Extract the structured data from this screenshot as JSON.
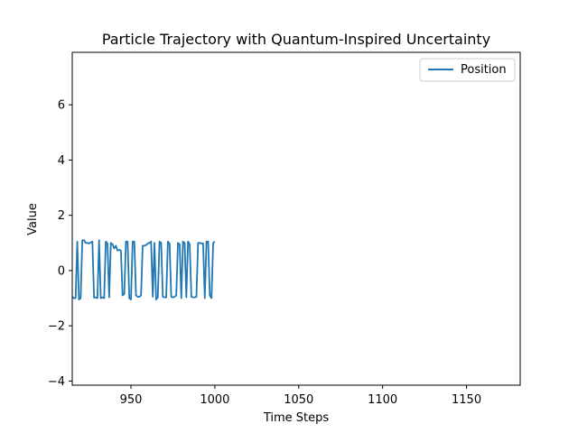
{
  "chart_data": {
    "type": "line",
    "title": "Particle Trajectory with Quantum-Inspired Uncertainty",
    "xlabel": "Time Steps",
    "ylabel": "Value",
    "xlim": [
      915,
      1182
    ],
    "ylim": [
      -4.15,
      7.9
    ],
    "xticks": [
      950,
      1000,
      1050,
      1100,
      1150
    ],
    "yticks": [
      -4,
      -2,
      0,
      2,
      4,
      6
    ],
    "grid": false,
    "legend": {
      "placement": "upper right",
      "entries": [
        "Position"
      ]
    },
    "series": [
      {
        "name": "Position",
        "color": "#1f77b4",
        "x": [
          915,
          916,
          917,
          918,
          919,
          920,
          921,
          922,
          923,
          924,
          925,
          926,
          927,
          928,
          929,
          930,
          931,
          932,
          933,
          934,
          935,
          936,
          937,
          938,
          939,
          940,
          941,
          942,
          943,
          944,
          945,
          946,
          947,
          948,
          949,
          950,
          951,
          952,
          953,
          954,
          955,
          956,
          957,
          958,
          959,
          960,
          961,
          962,
          963,
          964,
          965,
          966,
          967,
          968,
          969,
          970,
          971,
          972,
          973,
          974,
          975,
          976,
          977,
          978,
          979,
          980,
          981,
          982,
          983,
          984,
          985,
          986,
          987,
          988,
          989,
          990,
          991,
          992,
          993,
          994,
          995,
          996,
          997,
          998,
          999,
          1000
        ],
        "y": [
          -0.95,
          -1.0,
          -1.0,
          1.05,
          -1.05,
          -1.0,
          1.1,
          1.1,
          1.0,
          1.0,
          0.98,
          1.02,
          1.05,
          -0.98,
          -0.97,
          -1.0,
          1.1,
          -1.0,
          -0.97,
          -1.0,
          1.05,
          0.98,
          -0.97,
          1.0,
          0.95,
          0.8,
          0.9,
          0.72,
          0.75,
          0.72,
          -0.9,
          -0.85,
          1.05,
          1.05,
          -1.0,
          -1.05,
          1.05,
          1.05,
          -0.9,
          -0.95,
          -0.95,
          -0.9,
          0.9,
          0.9,
          0.92,
          0.98,
          1.0,
          1.05,
          -0.95,
          1.0,
          -1.05,
          -0.97,
          1.05,
          1.0,
          -0.95,
          -0.97,
          -0.97,
          1.05,
          0.98,
          -0.95,
          -0.97,
          -0.95,
          -0.9,
          1.0,
          0.95,
          -1.0,
          1.05,
          1.0,
          -0.97,
          1.05,
          0.95,
          -0.95,
          -0.97,
          -0.97,
          -0.95,
          1.0,
          1.0,
          0.98,
          0.98,
          -1.0,
          1.05,
          1.05,
          -0.9,
          -1.0,
          1.0,
          1.05
        ]
      }
    ]
  }
}
